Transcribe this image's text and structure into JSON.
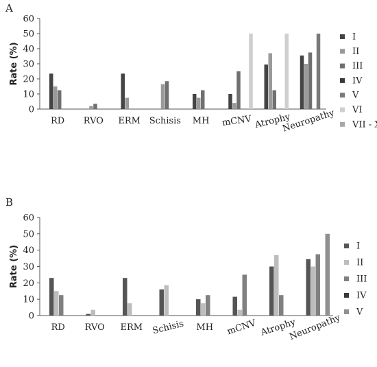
{
  "chart_data": [
    {
      "type": "bar",
      "panel_label": "A",
      "title": "",
      "xlabel": "",
      "ylabel": "Rate (%)",
      "ylim": [
        0,
        60
      ],
      "yticks": [
        0,
        10,
        20,
        30,
        40,
        50,
        60
      ],
      "grid": false,
      "legend_position": "right",
      "categories": [
        "RD",
        "RVO",
        "ERM",
        "Schisis",
        "MH",
        "mCNV",
        "Atrophy",
        "Neuropathy"
      ],
      "series": [
        {
          "name": "I",
          "color": "#444444",
          "values": [
            23.5,
            0,
            23.5,
            0,
            10,
            10,
            29.5,
            35.5
          ]
        },
        {
          "name": "II",
          "color": "#9a9a9a",
          "values": [
            15,
            2,
            7.5,
            16.5,
            7.5,
            4,
            37,
            30
          ]
        },
        {
          "name": "III",
          "color": "#707070",
          "values": [
            12.5,
            3.5,
            0,
            18.5,
            12.5,
            25,
            12.5,
            37.5
          ]
        },
        {
          "name": "IV",
          "color": "#3a3a3a",
          "values": [
            0,
            0,
            0,
            0,
            0,
            0,
            0,
            0
          ]
        },
        {
          "name": "V",
          "color": "#7a7a7a",
          "values": [
            0,
            0,
            0,
            0,
            0,
            0,
            0,
            50
          ]
        },
        {
          "name": "VI",
          "color": "#cfcfcf",
          "values": [
            0,
            0,
            0,
            0,
            0,
            50,
            50,
            0
          ]
        },
        {
          "name": "VII - X",
          "color": "#a8a8a8",
          "values": [
            0,
            0,
            0,
            0,
            0,
            0,
            0,
            0
          ]
        }
      ]
    },
    {
      "type": "bar",
      "panel_label": "B",
      "title": "",
      "xlabel": "",
      "ylabel": "Rate (%)",
      "ylim": [
        0,
        60
      ],
      "yticks": [
        0,
        10,
        20,
        30,
        40,
        50,
        60
      ],
      "grid": false,
      "legend_position": "right",
      "categories": [
        "RD",
        "RVO",
        "ERM",
        "Schisis",
        "MH",
        "mCNV",
        "Atrophy",
        "Neuropathy"
      ],
      "series": [
        {
          "name": "I",
          "color": "#555555",
          "values": [
            23,
            1,
            23,
            16,
            10,
            11.5,
            30,
            34.5
          ]
        },
        {
          "name": "II",
          "color": "#bdbdbd",
          "values": [
            15,
            3.5,
            7.5,
            18.5,
            7.5,
            3.5,
            37,
            30
          ]
        },
        {
          "name": "III",
          "color": "#808080",
          "values": [
            12.5,
            0,
            0,
            0,
            12.5,
            25,
            12.5,
            37.5
          ]
        },
        {
          "name": "IV",
          "color": "#3a3a3a",
          "values": [
            0,
            0,
            0,
            0,
            0,
            0,
            0,
            0
          ]
        },
        {
          "name": "V",
          "color": "#909090",
          "values": [
            0,
            0,
            0,
            0,
            0,
            0,
            0,
            50
          ]
        }
      ]
    }
  ]
}
